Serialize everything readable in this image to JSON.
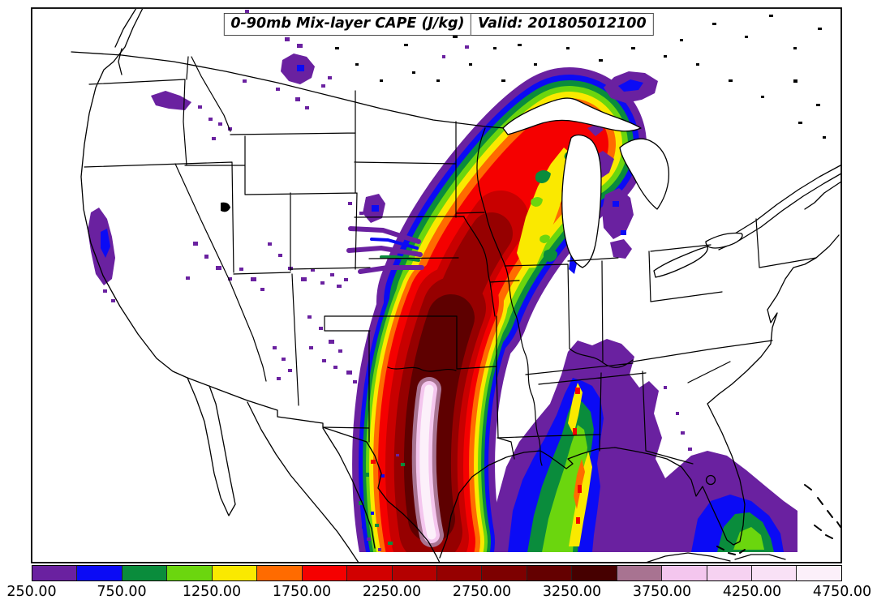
{
  "title": {
    "left": "0-90mb Mix-layer CAPE (J/kg)",
    "right": "Valid: 201805012100"
  },
  "palette": {
    "purple": "#6A21A0",
    "blue": "#0B0BF5",
    "green_dark": "#0A8C3C",
    "green_light": "#6BD60E",
    "yellow": "#FAE900",
    "orange": "#FF6B00",
    "red": "#F50000",
    "red_dark1": "#C80000",
    "red_dark2": "#960000",
    "red_dark3": "#5E0000",
    "maroon_darkest": "#460000",
    "mauve": "#A87391",
    "pink_light": "#F4C6EE",
    "pink_pale": "#FCF0FA",
    "land": "#FFFFFF",
    "border": "#000000"
  },
  "colorbar": {
    "units": "J/kg",
    "tick_labels": [
      "250.00",
      "750.00",
      "1250.00",
      "1750.00",
      "2250.00",
      "2750.00",
      "3250.00",
      "3750.00",
      "4250.00",
      "4750.00"
    ],
    "segments": [
      {
        "from": 250,
        "to": 500,
        "color": "#6A21A0"
      },
      {
        "from": 500,
        "to": 750,
        "color": "#0B0BF5"
      },
      {
        "from": 750,
        "to": 1000,
        "color": "#0A8C3C"
      },
      {
        "from": 1000,
        "to": 1250,
        "color": "#6BD60E"
      },
      {
        "from": 1250,
        "to": 1500,
        "color": "#FAE900"
      },
      {
        "from": 1500,
        "to": 1750,
        "color": "#FF6B00"
      },
      {
        "from": 1750,
        "to": 2000,
        "color": "#F50000"
      },
      {
        "from": 2000,
        "to": 2250,
        "color": "#D20000"
      },
      {
        "from": 2250,
        "to": 2500,
        "color": "#B40000"
      },
      {
        "from": 2500,
        "to": 2750,
        "color": "#960000"
      },
      {
        "from": 2750,
        "to": 3000,
        "color": "#7D0000"
      },
      {
        "from": 3000,
        "to": 3250,
        "color": "#640000"
      },
      {
        "from": 3250,
        "to": 3500,
        "color": "#460000"
      },
      {
        "from": 3500,
        "to": 3750,
        "color": "#A87391"
      },
      {
        "from": 3750,
        "to": 4000,
        "color": "#F4C6EE"
      },
      {
        "from": 4000,
        "to": 4250,
        "color": "#F6D2F1"
      },
      {
        "from": 4250,
        "to": 4500,
        "color": "#F9E1F6"
      },
      {
        "from": 4500,
        "to": 4750,
        "color": "#FCF0FA"
      }
    ]
  },
  "chart_data": {
    "type": "heatmap",
    "title": "0-90mb Mix-layer CAPE (J/kg)",
    "valid_time": "201805012100",
    "units": "J/kg",
    "contour_min": 250,
    "contour_interval": 250,
    "contour_max": 4750,
    "levels": [
      250,
      500,
      750,
      1000,
      1250,
      1500,
      1750,
      2000,
      2250,
      2500,
      2750,
      3000,
      3250,
      3500,
      3750,
      4000,
      4250,
      4500,
      4750
    ],
    "colors": [
      "#6A21A0",
      "#0B0BF5",
      "#0A8C3C",
      "#6BD60E",
      "#FAE900",
      "#FF6B00",
      "#F50000",
      "#D20000",
      "#B40000",
      "#960000",
      "#7D0000",
      "#640000",
      "#460000",
      "#A87391",
      "#F4C6EE",
      "#F6D2F1",
      "#F9E1F6",
      "#FCF0FA"
    ],
    "regions": [
      {
        "area": "south-central Texas",
        "value_range": "4500-4750+",
        "note": "pale pink/white maximum core"
      },
      {
        "area": "Texas / Oklahoma / Kansas / Missouri / Iowa axis",
        "value_range": "2500-3500",
        "note": "dark red instability plume"
      },
      {
        "area": "Wisconsin / Upper Michigan",
        "value_range": "1000-2250",
        "note": "northern end of plume, yellow-orange-red"
      },
      {
        "area": "Gulf of Mexico / Louisiana / Mississippi / Alabama",
        "value_range": "250-1750",
        "note": "broad moderate CAPE, green-blue-purple bands"
      },
      {
        "area": "western Gulf near Cuba",
        "value_range": "250-1250",
        "note": "purple/blue with green streaks"
      },
      {
        "area": "southern Ontario (Canada)",
        "value_range": "250-750",
        "note": "isolated purple blob with blue core"
      },
      {
        "area": "Lower Michigan",
        "value_range": "250-750",
        "note": "patchy purple with blue streaks"
      },
      {
        "area": "Intermountain West (CA/NV/UT/ID/MT/CO/NM/AZ)",
        "value_range": "250-500",
        "note": "scattered small purple specks"
      },
      {
        "area": "Northeast US and Southeast Atlantic coast",
        "value_range": "<250",
        "note": "white / no shading"
      }
    ]
  }
}
